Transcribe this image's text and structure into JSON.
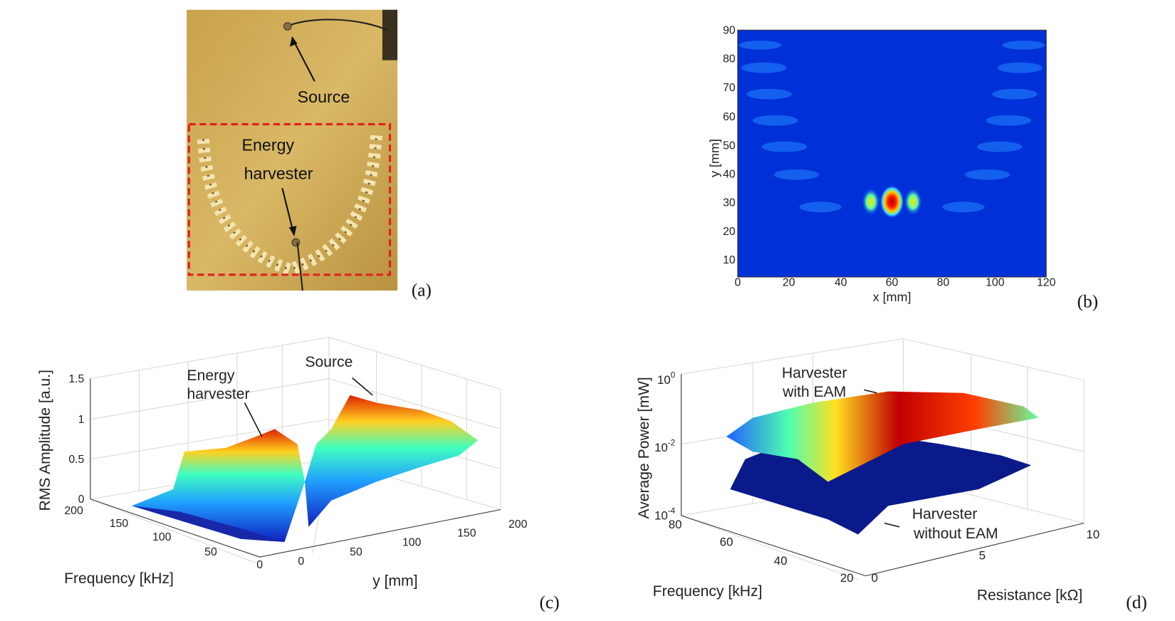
{
  "panels": {
    "a": {
      "label": "(a)",
      "source": "Source",
      "harvester_line1": "Energy",
      "harvester_line2": "harvester"
    },
    "b": {
      "label": "(b)",
      "xlabel": "x [mm]",
      "ylabel": "y [mm]",
      "xticks": [
        "0",
        "20",
        "40",
        "60",
        "80",
        "100",
        "120"
      ],
      "yticks": [
        "10",
        "20",
        "30",
        "40",
        "50",
        "60",
        "70",
        "80",
        "90"
      ]
    },
    "c": {
      "label": "(c)",
      "zlabel": "RMS Amplitude [a.u.]",
      "xlabel": "Frequency [kHz]",
      "ylabel": "y [mm]",
      "zticks": [
        "0",
        "0.5",
        "1",
        "1.5"
      ],
      "xticks": [
        "200",
        "150",
        "100",
        "50",
        "0"
      ],
      "yticks": [
        "0",
        "50",
        "100",
        "150",
        "200"
      ],
      "harvester_line1": "Energy",
      "harvester_line2": "harvester",
      "source": "Source"
    },
    "d": {
      "label": "(d)",
      "zlabel": "Average Power [mW]",
      "xlabel": "Frequency [kHz]",
      "ylabel": "Resistance [kΩ]",
      "zticks": [
        {
          "base": "10",
          "exp": "0"
        },
        {
          "base": "10",
          "exp": "-2"
        },
        {
          "base": "10",
          "exp": "-4"
        }
      ],
      "xticks": [
        "80",
        "60",
        "40",
        "20"
      ],
      "yticks": [
        "0",
        "5",
        "10"
      ],
      "with_line1": "Harvester",
      "with_line2": "with EAM",
      "without_line1": "Harvester",
      "without_line2": "without EAM"
    }
  }
}
